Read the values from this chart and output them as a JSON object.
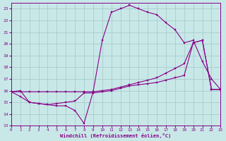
{
  "xlabel": "Windchill (Refroidissement éolien,°C)",
  "background_color": "#c8e8e8",
  "grid_color": "#aacccc",
  "line_color": "#880088",
  "xlim": [
    0,
    23
  ],
  "ylim": [
    13,
    23.5
  ],
  "yticks": [
    13,
    14,
    15,
    16,
    17,
    18,
    19,
    20,
    21,
    22,
    23
  ],
  "xticks": [
    0,
    1,
    2,
    3,
    4,
    5,
    6,
    7,
    8,
    9,
    10,
    11,
    12,
    13,
    14,
    15,
    16,
    17,
    18,
    19,
    20,
    21,
    22,
    23
  ],
  "series1_x": [
    0,
    1,
    2,
    3,
    4,
    5,
    6,
    7,
    8,
    9,
    10,
    11,
    12,
    13,
    14,
    15,
    16,
    17,
    18,
    19,
    20,
    21,
    22,
    23
  ],
  "series1_y": [
    15.9,
    16.0,
    15.0,
    14.9,
    14.8,
    14.7,
    14.7,
    14.3,
    13.2,
    15.9,
    20.3,
    22.7,
    23.0,
    23.3,
    23.0,
    22.7,
    22.5,
    21.8,
    21.2,
    20.1,
    20.3,
    18.5,
    17.0,
    16.1
  ],
  "series2_x": [
    0,
    1,
    2,
    3,
    4,
    5,
    6,
    7,
    8,
    9,
    10,
    11,
    12,
    13,
    14,
    15,
    16,
    17,
    18,
    19,
    20,
    21,
    22,
    23
  ],
  "series2_y": [
    15.9,
    15.5,
    15.0,
    14.9,
    14.8,
    14.9,
    15.0,
    15.1,
    15.8,
    15.8,
    15.9,
    16.0,
    16.2,
    16.4,
    16.5,
    16.6,
    16.7,
    16.9,
    17.1,
    17.3,
    20.1,
    20.3,
    16.1,
    16.1
  ],
  "series3_x": [
    0,
    1,
    2,
    3,
    4,
    5,
    6,
    7,
    8,
    9,
    10,
    11,
    12,
    13,
    14,
    15,
    16,
    17,
    18,
    19,
    20,
    21,
    22,
    23
  ],
  "series3_y": [
    15.9,
    15.9,
    15.9,
    15.9,
    15.9,
    15.9,
    15.9,
    15.9,
    15.9,
    15.9,
    16.0,
    16.1,
    16.3,
    16.5,
    16.7,
    16.9,
    17.1,
    17.5,
    17.9,
    18.3,
    20.1,
    20.3,
    16.1,
    16.1
  ]
}
